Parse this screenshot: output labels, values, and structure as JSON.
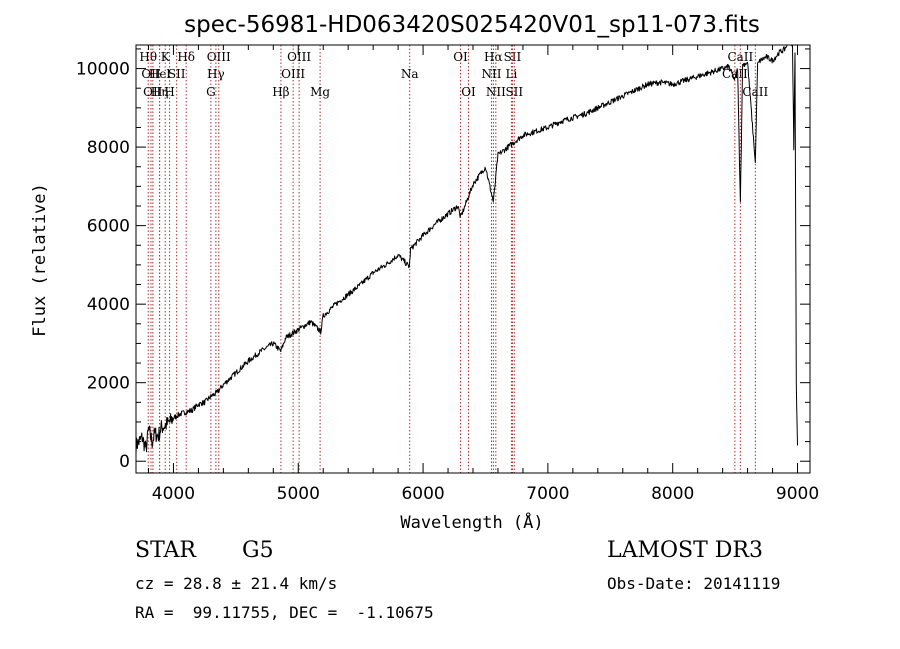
{
  "chart_data": {
    "type": "line",
    "title": "spec-56981-HD063420S025420V01_sp11-073.fits",
    "xlabel": "Wavelength (Å)",
    "ylabel": "Flux (relative)",
    "xlim": [
      3700,
      9100
    ],
    "ylim": [
      -300,
      10600
    ],
    "xticks": [
      4000,
      5000,
      6000,
      7000,
      8000,
      9000
    ],
    "yticks": [
      0,
      2000,
      4000,
      6000,
      8000,
      10000
    ],
    "grid": false,
    "series": [
      {
        "name": "flux",
        "x": [
          3700,
          3750,
          3780,
          3800,
          3830,
          3850,
          3880,
          3900,
          3930,
          3950,
          3970,
          4000,
          4050,
          4100,
          4150,
          4200,
          4250,
          4300,
          4350,
          4400,
          4500,
          4600,
          4700,
          4800,
          4860,
          4900,
          5000,
          5100,
          5180,
          5200,
          5300,
          5400,
          5500,
          5600,
          5700,
          5800,
          5890,
          5900,
          6000,
          6100,
          6200,
          6280,
          6300,
          6400,
          6500,
          6563,
          6600,
          6700,
          6800,
          6900,
          7000,
          7100,
          7200,
          7300,
          7400,
          7500,
          7600,
          7700,
          7800,
          7900,
          8000,
          8100,
          8200,
          8300,
          8400,
          8450,
          8498,
          8520,
          8542,
          8560,
          8600,
          8662,
          8680,
          8700,
          8750,
          8800,
          8850,
          8900,
          8940,
          8960,
          8970,
          8980,
          8990,
          9000
        ],
        "y": [
          400,
          600,
          300,
          800,
          500,
          700,
          650,
          850,
          900,
          950,
          1000,
          1100,
          1200,
          1250,
          1300,
          1450,
          1500,
          1650,
          1750,
          1950,
          2250,
          2550,
          2800,
          3000,
          2800,
          3150,
          3350,
          3550,
          3300,
          3700,
          4000,
          4250,
          4500,
          4800,
          5000,
          5250,
          4950,
          5400,
          5750,
          6050,
          6300,
          6500,
          6200,
          7050,
          7500,
          6600,
          7800,
          8050,
          8300,
          8400,
          8500,
          8650,
          8750,
          8850,
          9000,
          9150,
          9300,
          9450,
          9600,
          9650,
          9600,
          9700,
          9800,
          9900,
          10000,
          10050,
          9700,
          10000,
          6600,
          10100,
          10150,
          7600,
          10100,
          10200,
          10300,
          10200,
          10400,
          10500,
          10800,
          10600,
          8000,
          10400,
          2000,
          400
        ]
      }
    ],
    "lines": [
      {
        "wl": 3798,
        "label": "Hθ",
        "row": 1
      },
      {
        "wl": 3820,
        "label": "OII",
        "row": 2
      },
      {
        "wl": 3835,
        "label": "OII",
        "row": 3
      },
      {
        "wl": 3889,
        "label": "Hel",
        "row": 2
      },
      {
        "wl": 3889,
        "label": "Hη",
        "row": 3
      },
      {
        "wl": 3934,
        "label": "K",
        "row": 1
      },
      {
        "wl": 3969,
        "label": "H",
        "row": 3
      },
      {
        "wl": 4026,
        "label": "SII",
        "row": 2
      },
      {
        "wl": 4102,
        "label": "Hδ",
        "row": 1
      },
      {
        "wl": 4300,
        "label": "G",
        "row": 3
      },
      {
        "wl": 4340,
        "label": "Hγ",
        "row": 2
      },
      {
        "wl": 4363,
        "label": "OIII",
        "row": 1
      },
      {
        "wl": 4861,
        "label": "Hβ",
        "row": 3
      },
      {
        "wl": 4959,
        "label": "OIII",
        "row": 2
      },
      {
        "wl": 5007,
        "label": "OIII",
        "row": 1
      },
      {
        "wl": 5175,
        "label": "Mg",
        "row": 3
      },
      {
        "wl": 5893,
        "label": "Na",
        "row": 2
      },
      {
        "wl": 6300,
        "label": "OI",
        "row": 1
      },
      {
        "wl": 6364,
        "label": "OI",
        "row": 3
      },
      {
        "wl": 6548,
        "label": "NII",
        "row": 2
      },
      {
        "wl": 6563,
        "label": "Hα",
        "row": 1
      },
      {
        "wl": 6583,
        "label": "NII",
        "row": 3
      },
      {
        "wl": 6708,
        "label": "Li",
        "row": 2
      },
      {
        "wl": 6716,
        "label": "SII",
        "row": 1
      },
      {
        "wl": 6731,
        "label": "SII",
        "row": 3
      },
      {
        "wl": 8498,
        "label": "CaII",
        "row": 2
      },
      {
        "wl": 8542,
        "label": "CaII",
        "row": 1
      },
      {
        "wl": 8662,
        "label": "CaII",
        "row": 3
      }
    ]
  },
  "info": {
    "class": "STAR",
    "subclass": "G5",
    "survey": "LAMOST DR3",
    "cz": "cz = 28.8 ± 21.4 km/s",
    "obsdate": "Obs-Date: 20141119",
    "radec": "RA =  99.11755, DEC =  -1.10675"
  },
  "colors": {
    "spectrum": "#000000",
    "line_marker": "#b03030"
  }
}
